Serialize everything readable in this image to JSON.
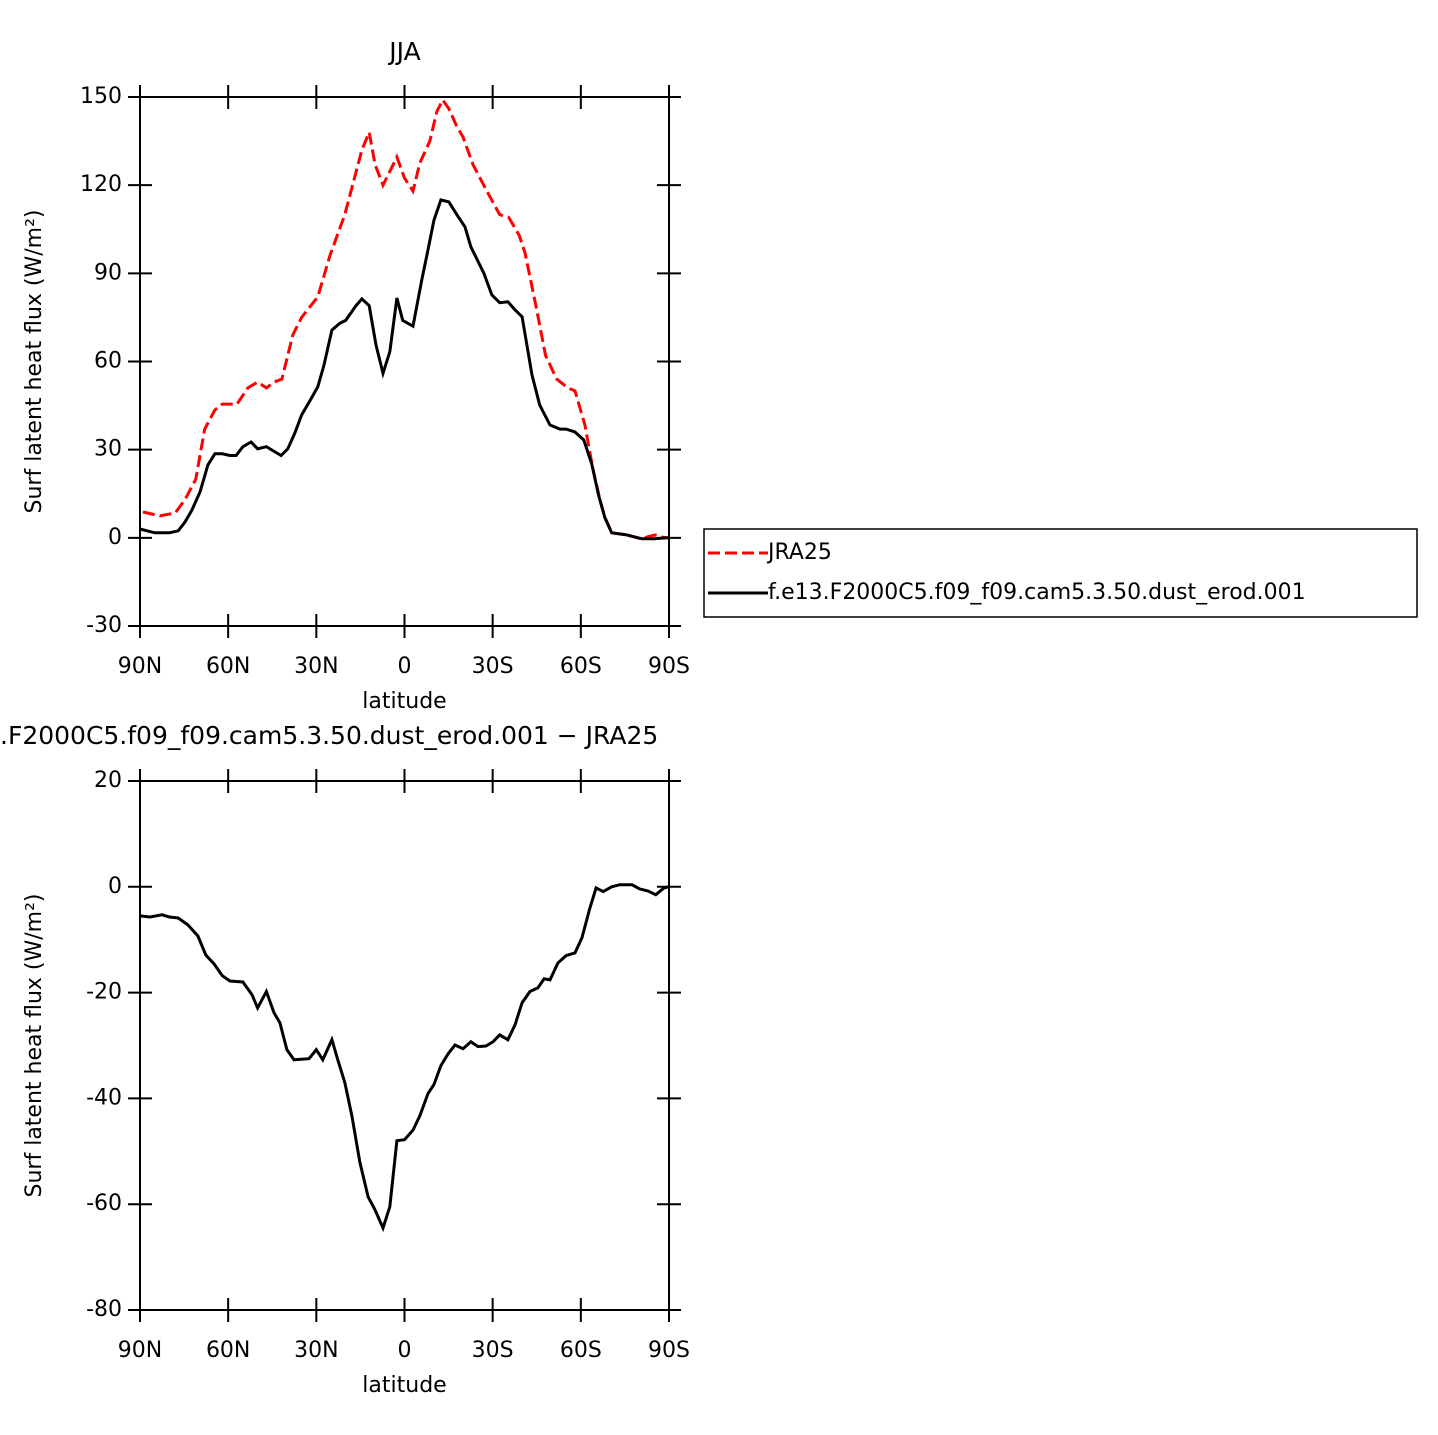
{
  "chart_data": [
    {
      "type": "line",
      "title": "JJA",
      "xlabel": "latitude",
      "ylabel": "Surf latent heat flux (W/m²)",
      "xlim": [
        90,
        -90
      ],
      "xticks": [
        {
          "value": 90,
          "label": "90N"
        },
        {
          "value": 60,
          "label": "60N"
        },
        {
          "value": 30,
          "label": "30N"
        },
        0,
        {
          "value": -30,
          "label": "30S"
        },
        {
          "value": -60,
          "label": "60S"
        },
        {
          "value": -90,
          "label": "90S"
        }
      ],
      "ylim": [
        -30,
        150
      ],
      "yticks": [
        -30,
        0,
        30,
        60,
        90,
        120,
        150
      ],
      "legend": "outside right",
      "series": [
        {
          "name": "JRA25",
          "color": "#ff0000",
          "line_style": "dashed",
          "x": [
            89,
            83.2,
            78,
            74.7,
            71,
            68,
            64.5,
            62,
            57,
            53.3,
            50,
            47,
            44.4,
            41.7,
            38,
            35,
            29.5,
            25.4,
            20.3,
            14.5,
            12,
            10,
            7.3,
            2.6,
            0,
            -2.9,
            -5.2,
            -8.6,
            -11,
            -13,
            -15.1,
            -17.8,
            -19.9,
            -23.3,
            -28,
            -32.4,
            -35.5,
            -39,
            -41,
            -44.7,
            -48,
            -51.8,
            -55.6,
            -58,
            -61.4,
            -64,
            -66.5,
            -68.2,
            -70.5,
            -75.6,
            -80.4,
            -85.2,
            -87,
            -89.6
          ],
          "values": [
            8.8,
            7.5,
            8.5,
            13,
            20,
            37,
            43.5,
            45.5,
            45.5,
            51,
            53,
            51,
            53,
            54,
            69,
            75,
            82,
            96,
            110,
            132,
            138,
            127,
            120,
            129.6,
            122.4,
            118,
            127.5,
            135,
            145,
            149,
            146,
            140,
            136.4,
            127,
            118,
            110,
            109,
            103,
            97,
            79,
            62,
            54,
            51,
            50,
            38.4,
            24,
            13,
            7,
            1.7,
            1,
            -0.3,
            1,
            0.3,
            0
          ]
        },
        {
          "name": "f.e13.F2000C5.f09_f09.cam5.3.50.dust_erod.001",
          "color": "#000000",
          "line_style": "solid",
          "x": [
            90,
            85,
            80,
            77,
            74.7,
            72.3,
            69.6,
            66.9,
            64.5,
            62,
            59.4,
            57.3,
            55,
            52.2,
            50,
            47,
            42,
            39.7,
            37.3,
            35,
            32,
            29.5,
            27.4,
            24.7,
            22,
            20,
            16.5,
            14.5,
            12,
            9.7,
            7.3,
            5,
            2.6,
            0.6,
            -2.9,
            -5.9,
            -8,
            -10,
            -12.4,
            -15.1,
            -17.8,
            -20.6,
            -22.6,
            -27,
            -29.7,
            -32.4,
            -35.2,
            -37.6,
            -40,
            -43.4,
            -46,
            -49.5,
            -52.9,
            -55,
            -58,
            -61,
            -63.7,
            -66,
            -68.2,
            -70.5,
            -75.6,
            -80.7,
            -85,
            -89.6
          ],
          "values": [
            3,
            1.7,
            1.7,
            2.4,
            5.4,
            9.5,
            15.6,
            24.8,
            28.6,
            28.6,
            28,
            28,
            31,
            32.6,
            30.3,
            31,
            28,
            30.3,
            35.7,
            41.8,
            47,
            51.4,
            58.8,
            70.7,
            73,
            74,
            79,
            81.3,
            79,
            65.6,
            56,
            63.3,
            81.6,
            74,
            72,
            87.8,
            98,
            108,
            115,
            114.3,
            110,
            105.8,
            99,
            90,
            82.7,
            80,
            80.3,
            77.6,
            75.2,
            55.4,
            45.2,
            38.4,
            37,
            37,
            36,
            33.3,
            25.2,
            14.6,
            6.8,
            1.7,
            1,
            -0.3,
            -0.3,
            0
          ]
        }
      ]
    },
    {
      "type": "line",
      "title": ".F2000C5.f09_f09.cam5.3.50.dust_erod.001 − JRA25",
      "xlabel": "latitude",
      "ylabel": "Surf latent heat flux (W/m²)",
      "xlim": [
        90,
        -90
      ],
      "xticks": [
        {
          "value": 90,
          "label": "90N"
        },
        {
          "value": 60,
          "label": "60N"
        },
        {
          "value": 30,
          "label": "30N"
        },
        0,
        {
          "value": -30,
          "label": "30S"
        },
        {
          "value": -60,
          "label": "60S"
        },
        {
          "value": -90,
          "label": "90S"
        }
      ],
      "ylim": [
        -80,
        20
      ],
      "yticks": [
        -80,
        -60,
        -40,
        -20,
        0,
        20
      ],
      "color": "#000000",
      "x": [
        90,
        86.6,
        82.5,
        80,
        77,
        73.7,
        70.3,
        67.6,
        64.8,
        62,
        59.4,
        55,
        51.9,
        50,
        47,
        44.4,
        42.4,
        40,
        37.6,
        32.5,
        30,
        27.8,
        24.7,
        22.7,
        20.3,
        17.9,
        15.2,
        12.4,
        10,
        7.3,
        5,
        2.6,
        0,
        -2.9,
        -5.2,
        -8,
        -10,
        -12.4,
        -14.8,
        -17.2,
        -19.9,
        -22.6,
        -25,
        -27.7,
        -30.1,
        -32.4,
        -35.2,
        -37.6,
        -40,
        -42.7,
        -45.4,
        -47.5,
        -49.5,
        -52.2,
        -55,
        -58,
        -60.4,
        -63.1,
        -65.2,
        -67.6,
        -70.5,
        -73.3,
        -77.4,
        -80,
        -82.9,
        -85.5,
        -88.3,
        -90
      ],
      "values": [
        -5.5,
        -5.7,
        -5.3,
        -5.7,
        -5.9,
        -7.2,
        -9.3,
        -12.9,
        -14.6,
        -16.8,
        -17.8,
        -18,
        -20.4,
        -22.9,
        -19.8,
        -23.8,
        -25.7,
        -30.8,
        -32.7,
        -32.5,
        -30.8,
        -32.7,
        -28.9,
        -32.7,
        -37,
        -43.3,
        -52,
        -58.6,
        -61.1,
        -64.5,
        -60.5,
        -48,
        -47.8,
        -46,
        -43.3,
        -39.1,
        -37.4,
        -33.8,
        -31.6,
        -29.9,
        -30.6,
        -29.3,
        -30.2,
        -30.1,
        -29.3,
        -28,
        -28.9,
        -26.1,
        -21.9,
        -19.8,
        -19.1,
        -17.4,
        -17.6,
        -14.4,
        -13,
        -12.5,
        -9.6,
        -4,
        -0.2,
        -0.9,
        0,
        0.4,
        0.4,
        -0.4,
        -0.8,
        -1.5,
        -0.2,
        0
      ]
    }
  ]
}
